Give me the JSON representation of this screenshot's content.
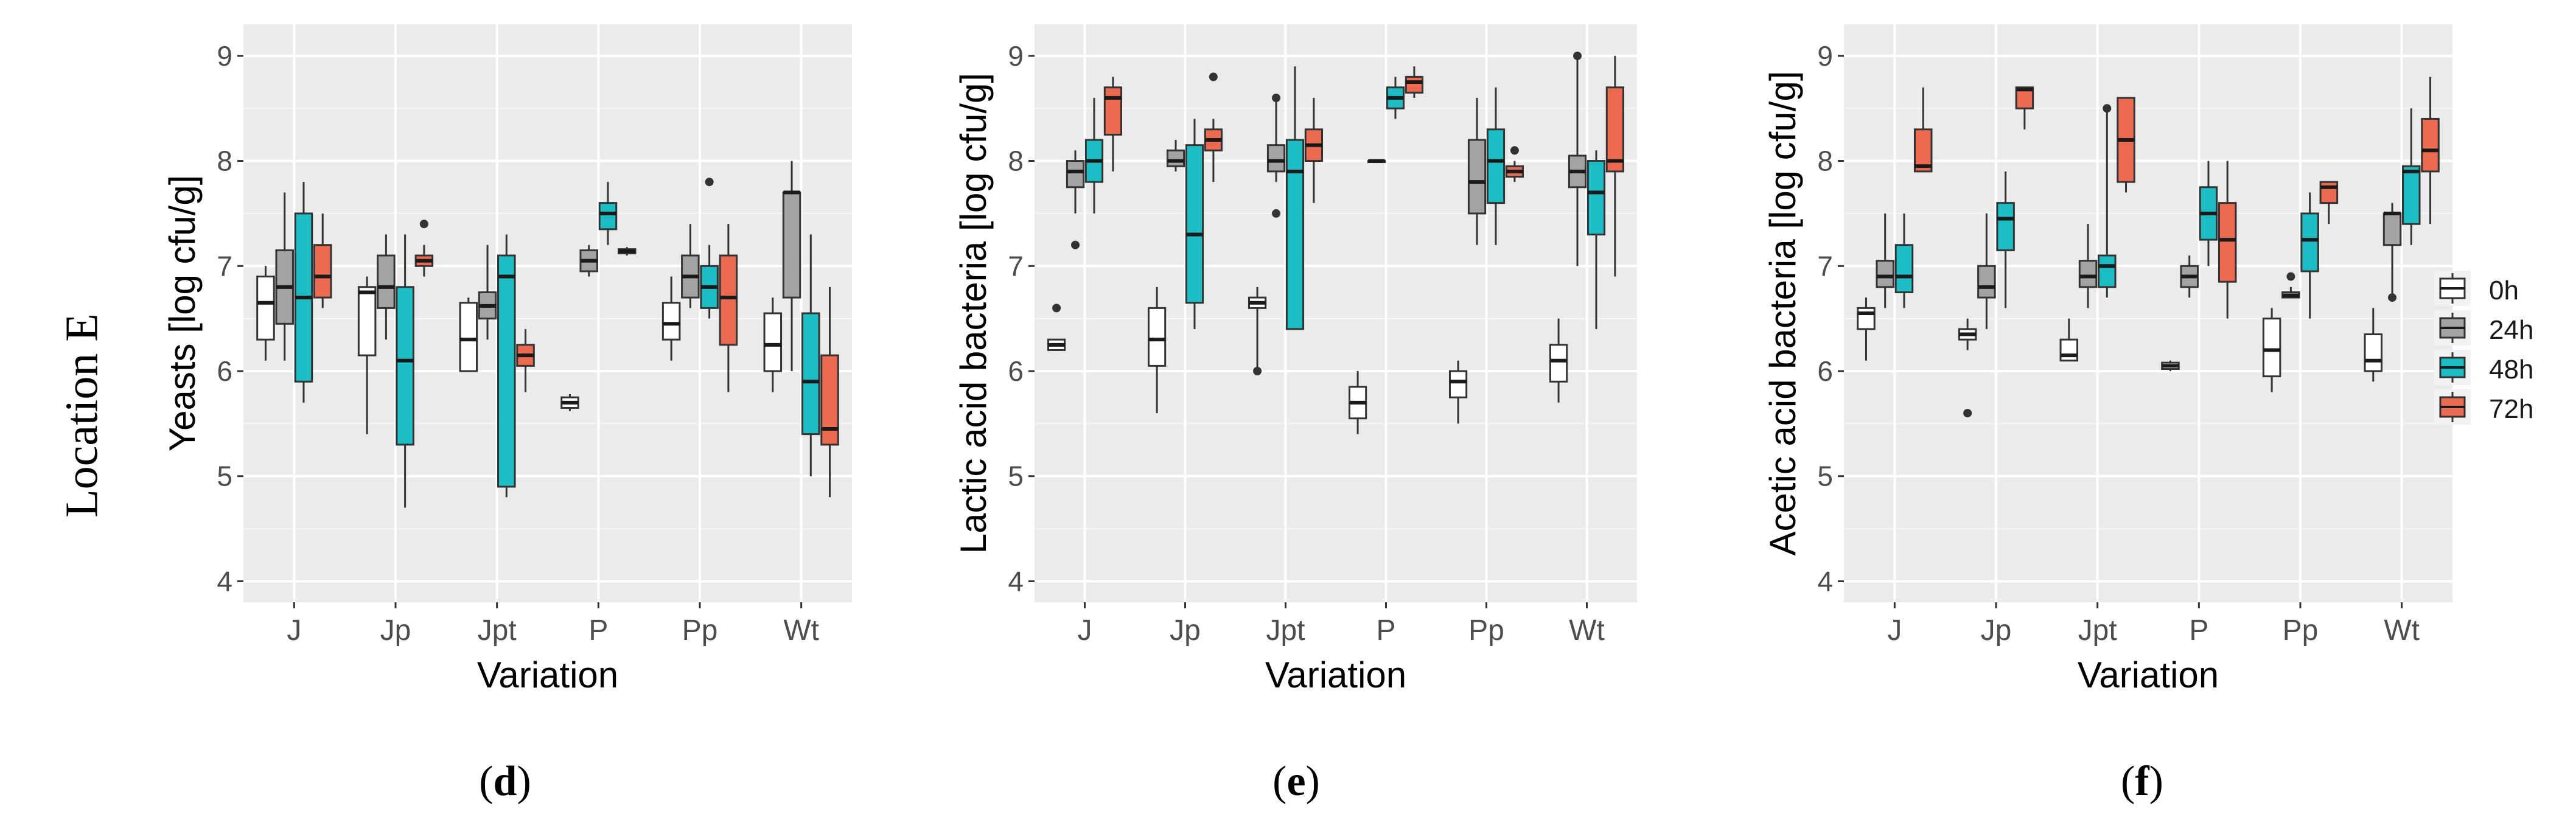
{
  "row_label": "Location E",
  "legend": {
    "items": [
      {
        "label": "0h",
        "color": "#ffffff"
      },
      {
        "label": "24h",
        "color": "#a3a3a3"
      },
      {
        "label": "48h",
        "color": "#1cbdc5"
      },
      {
        "label": "72h",
        "color": "#ec6a4f"
      }
    ]
  },
  "chart_data": [
    {
      "type": "boxplot",
      "panel_letter": "d",
      "xlabel": "Variation",
      "ylabel": "Yeasts [log cfu/g]",
      "ylim": [
        3.8,
        9.3
      ],
      "yticks": [
        "4",
        "5",
        "6",
        "7",
        "8",
        "9"
      ],
      "categories": [
        "J",
        "Jp",
        "Jpt",
        "P",
        "Pp",
        "Wt"
      ],
      "series": [
        {
          "name": "0h",
          "boxes": [
            {
              "min": 6.1,
              "q1": 6.3,
              "median": 6.65,
              "q3": 6.9,
              "max": 7.0,
              "outliers": []
            },
            {
              "min": 5.4,
              "q1": 6.15,
              "median": 6.75,
              "q3": 6.8,
              "max": 6.9,
              "outliers": []
            },
            {
              "min": 6.0,
              "q1": 6.0,
              "median": 6.3,
              "q3": 6.65,
              "max": 6.7,
              "outliers": []
            },
            {
              "min": 5.62,
              "q1": 5.65,
              "median": 5.7,
              "q3": 5.75,
              "max": 5.78,
              "outliers": []
            },
            {
              "min": 6.1,
              "q1": 6.3,
              "median": 6.45,
              "q3": 6.65,
              "max": 6.9,
              "outliers": []
            },
            {
              "min": 5.8,
              "q1": 6.0,
              "median": 6.25,
              "q3": 6.55,
              "max": 6.7,
              "outliers": []
            }
          ]
        },
        {
          "name": "24h",
          "boxes": [
            {
              "min": 6.1,
              "q1": 6.45,
              "median": 6.8,
              "q3": 7.15,
              "max": 7.7,
              "outliers": []
            },
            {
              "min": 6.3,
              "q1": 6.6,
              "median": 6.8,
              "q3": 7.1,
              "max": 7.3,
              "outliers": []
            },
            {
              "min": 6.3,
              "q1": 6.5,
              "median": 6.62,
              "q3": 6.75,
              "max": 7.2,
              "outliers": []
            },
            {
              "min": 6.9,
              "q1": 6.95,
              "median": 7.05,
              "q3": 7.15,
              "max": 7.2,
              "outliers": []
            },
            {
              "min": 6.6,
              "q1": 6.7,
              "median": 6.9,
              "q3": 7.1,
              "max": 7.4,
              "outliers": []
            },
            {
              "min": 6.0,
              "q1": 6.7,
              "median": 7.7,
              "q3": 7.7,
              "max": 8.0,
              "outliers": []
            }
          ]
        },
        {
          "name": "48h",
          "boxes": [
            {
              "min": 5.7,
              "q1": 5.9,
              "median": 6.7,
              "q3": 7.5,
              "max": 7.8,
              "outliers": []
            },
            {
              "min": 4.7,
              "q1": 5.3,
              "median": 6.1,
              "q3": 6.8,
              "max": 7.3,
              "outliers": []
            },
            {
              "min": 4.8,
              "q1": 4.9,
              "median": 6.9,
              "q3": 7.1,
              "max": 7.3,
              "outliers": []
            },
            {
              "min": 7.2,
              "q1": 7.35,
              "median": 7.5,
              "q3": 7.6,
              "max": 7.8,
              "outliers": []
            },
            {
              "min": 6.5,
              "q1": 6.6,
              "median": 6.8,
              "q3": 7.0,
              "max": 7.2,
              "outliers": [
                7.8
              ]
            },
            {
              "min": 5.0,
              "q1": 5.4,
              "median": 5.9,
              "q3": 6.55,
              "max": 7.3,
              "outliers": []
            }
          ]
        },
        {
          "name": "72h",
          "boxes": [
            {
              "min": 6.6,
              "q1": 6.7,
              "median": 6.9,
              "q3": 7.2,
              "max": 7.5,
              "outliers": []
            },
            {
              "min": 6.9,
              "q1": 7.0,
              "median": 7.05,
              "q3": 7.1,
              "max": 7.2,
              "outliers": [
                7.4
              ]
            },
            {
              "min": 5.8,
              "q1": 6.05,
              "median": 6.15,
              "q3": 6.25,
              "max": 6.4,
              "outliers": []
            },
            {
              "min": 7.1,
              "q1": 7.12,
              "median": 7.14,
              "q3": 7.16,
              "max": 7.18,
              "outliers": []
            },
            {
              "min": 5.8,
              "q1": 6.25,
              "median": 6.7,
              "q3": 7.1,
              "max": 7.4,
              "outliers": []
            },
            {
              "min": 4.8,
              "q1": 5.3,
              "median": 5.45,
              "q3": 6.15,
              "max": 6.8,
              "outliers": []
            }
          ]
        }
      ]
    },
    {
      "type": "boxplot",
      "panel_letter": "e",
      "xlabel": "Variation",
      "ylabel": "Lactic acid bacteria [log cfu/g]",
      "ylim": [
        3.8,
        9.3
      ],
      "yticks": [
        "4",
        "5",
        "6",
        "7",
        "8",
        "9"
      ],
      "categories": [
        "J",
        "Jp",
        "Jpt",
        "P",
        "Pp",
        "Wt"
      ],
      "series": [
        {
          "name": "0h",
          "boxes": [
            {
              "min": 6.2,
              "q1": 6.2,
              "median": 6.25,
              "q3": 6.3,
              "max": 6.3,
              "outliers": [
                6.6
              ]
            },
            {
              "min": 5.6,
              "q1": 6.05,
              "median": 6.3,
              "q3": 6.6,
              "max": 6.8,
              "outliers": []
            },
            {
              "min": 6.0,
              "q1": 6.6,
              "median": 6.65,
              "q3": 6.7,
              "max": 6.8,
              "outliers": [
                6.0
              ]
            },
            {
              "min": 5.4,
              "q1": 5.55,
              "median": 5.7,
              "q3": 5.85,
              "max": 6.0,
              "outliers": []
            },
            {
              "min": 5.5,
              "q1": 5.75,
              "median": 5.9,
              "q3": 6.0,
              "max": 6.1,
              "outliers": []
            },
            {
              "min": 5.7,
              "q1": 5.9,
              "median": 6.1,
              "q3": 6.25,
              "max": 6.5,
              "outliers": []
            }
          ]
        },
        {
          "name": "24h",
          "boxes": [
            {
              "min": 7.5,
              "q1": 7.75,
              "median": 7.9,
              "q3": 8.0,
              "max": 8.1,
              "outliers": [
                7.2
              ]
            },
            {
              "min": 7.9,
              "q1": 7.95,
              "median": 8.0,
              "q3": 8.1,
              "max": 8.2,
              "outliers": []
            },
            {
              "min": 7.8,
              "q1": 7.9,
              "median": 8.0,
              "q3": 8.15,
              "max": 8.6,
              "outliers": [
                7.5,
                8.6
              ]
            },
            {
              "min": 8.0,
              "q1": 8.0,
              "median": 8.0,
              "q3": 8.0,
              "max": 8.0,
              "outliers": []
            },
            {
              "min": 7.2,
              "q1": 7.5,
              "median": 7.8,
              "q3": 8.2,
              "max": 8.6,
              "outliers": []
            },
            {
              "min": 7.0,
              "q1": 7.75,
              "median": 7.9,
              "q3": 8.05,
              "max": 9.0,
              "outliers": [
                9.0
              ]
            }
          ]
        },
        {
          "name": "48h",
          "boxes": [
            {
              "min": 7.5,
              "q1": 7.8,
              "median": 8.0,
              "q3": 8.2,
              "max": 8.6,
              "outliers": []
            },
            {
              "min": 6.4,
              "q1": 6.65,
              "median": 7.3,
              "q3": 8.15,
              "max": 8.4,
              "outliers": []
            },
            {
              "min": 6.4,
              "q1": 6.4,
              "median": 7.9,
              "q3": 8.2,
              "max": 8.9,
              "outliers": []
            },
            {
              "min": 8.4,
              "q1": 8.5,
              "median": 8.6,
              "q3": 8.7,
              "max": 8.8,
              "outliers": []
            },
            {
              "min": 7.2,
              "q1": 7.6,
              "median": 8.0,
              "q3": 8.3,
              "max": 8.7,
              "outliers": []
            },
            {
              "min": 6.4,
              "q1": 7.3,
              "median": 7.7,
              "q3": 8.0,
              "max": 8.1,
              "outliers": []
            }
          ]
        },
        {
          "name": "72h",
          "boxes": [
            {
              "min": 7.9,
              "q1": 8.25,
              "median": 8.6,
              "q3": 8.7,
              "max": 8.8,
              "outliers": []
            },
            {
              "min": 7.8,
              "q1": 8.1,
              "median": 8.2,
              "q3": 8.3,
              "max": 8.4,
              "outliers": [
                8.8
              ]
            },
            {
              "min": 7.6,
              "q1": 8.0,
              "median": 8.15,
              "q3": 8.3,
              "max": 8.6,
              "outliers": []
            },
            {
              "min": 8.6,
              "q1": 8.65,
              "median": 8.75,
              "q3": 8.8,
              "max": 8.9,
              "outliers": []
            },
            {
              "min": 7.8,
              "q1": 7.85,
              "median": 7.9,
              "q3": 7.95,
              "max": 8.0,
              "outliers": [
                8.1
              ]
            },
            {
              "min": 6.9,
              "q1": 7.9,
              "median": 8.0,
              "q3": 8.7,
              "max": 9.0,
              "outliers": []
            }
          ]
        }
      ]
    },
    {
      "type": "boxplot",
      "panel_letter": "f",
      "xlabel": "Variation",
      "ylabel": "Acetic acid bacteria [log cfu/g]",
      "ylim": [
        3.8,
        9.3
      ],
      "yticks": [
        "4",
        "5",
        "6",
        "7",
        "8",
        "9"
      ],
      "categories": [
        "J",
        "Jp",
        "Jpt",
        "P",
        "Pp",
        "Wt"
      ],
      "series": [
        {
          "name": "0h",
          "boxes": [
            {
              "min": 6.1,
              "q1": 6.4,
              "median": 6.55,
              "q3": 6.6,
              "max": 6.7,
              "outliers": []
            },
            {
              "min": 6.2,
              "q1": 6.3,
              "median": 6.35,
              "q3": 6.4,
              "max": 6.5,
              "outliers": [
                5.6
              ]
            },
            {
              "min": 6.1,
              "q1": 6.1,
              "median": 6.15,
              "q3": 6.3,
              "max": 6.5,
              "outliers": []
            },
            {
              "min": 6.0,
              "q1": 6.02,
              "median": 6.05,
              "q3": 6.08,
              "max": 6.1,
              "outliers": []
            },
            {
              "min": 5.8,
              "q1": 5.95,
              "median": 6.2,
              "q3": 6.5,
              "max": 6.6,
              "outliers": []
            },
            {
              "min": 5.9,
              "q1": 6.0,
              "median": 6.1,
              "q3": 6.35,
              "max": 6.6,
              "outliers": []
            }
          ]
        },
        {
          "name": "24h",
          "boxes": [
            {
              "min": 6.6,
              "q1": 6.8,
              "median": 6.9,
              "q3": 7.05,
              "max": 7.5,
              "outliers": []
            },
            {
              "min": 6.4,
              "q1": 6.7,
              "median": 6.8,
              "q3": 7.0,
              "max": 7.5,
              "outliers": []
            },
            {
              "min": 6.6,
              "q1": 6.8,
              "median": 6.9,
              "q3": 7.05,
              "max": 7.4,
              "outliers": []
            },
            {
              "min": 6.7,
              "q1": 6.8,
              "median": 6.9,
              "q3": 7.0,
              "max": 7.1,
              "outliers": []
            },
            {
              "min": 6.7,
              "q1": 6.7,
              "median": 6.72,
              "q3": 6.75,
              "max": 6.8,
              "outliers": [
                6.9
              ]
            },
            {
              "min": 6.7,
              "q1": 7.2,
              "median": 7.5,
              "q3": 7.5,
              "max": 7.6,
              "outliers": [
                6.7
              ]
            }
          ]
        },
        {
          "name": "48h",
          "boxes": [
            {
              "min": 6.6,
              "q1": 6.75,
              "median": 6.9,
              "q3": 7.2,
              "max": 7.5,
              "outliers": []
            },
            {
              "min": 6.6,
              "q1": 7.15,
              "median": 7.45,
              "q3": 7.6,
              "max": 7.9,
              "outliers": []
            },
            {
              "min": 6.7,
              "q1": 6.8,
              "median": 7.0,
              "q3": 7.1,
              "max": 8.5,
              "outliers": [
                8.5
              ]
            },
            {
              "min": 7.0,
              "q1": 7.25,
              "median": 7.5,
              "q3": 7.75,
              "max": 8.0,
              "outliers": []
            },
            {
              "min": 6.5,
              "q1": 6.95,
              "median": 7.25,
              "q3": 7.5,
              "max": 7.7,
              "outliers": []
            },
            {
              "min": 7.2,
              "q1": 7.4,
              "median": 7.9,
              "q3": 7.95,
              "max": 8.5,
              "outliers": []
            }
          ]
        },
        {
          "name": "72h",
          "boxes": [
            {
              "min": 7.9,
              "q1": 7.9,
              "median": 7.95,
              "q3": 8.3,
              "max": 8.7,
              "outliers": []
            },
            {
              "min": 8.3,
              "q1": 8.5,
              "median": 8.68,
              "q3": 8.7,
              "max": 8.7,
              "outliers": []
            },
            {
              "min": 7.7,
              "q1": 7.8,
              "median": 8.2,
              "q3": 8.6,
              "max": 8.6,
              "outliers": []
            },
            {
              "min": 6.5,
              "q1": 6.85,
              "median": 7.25,
              "q3": 7.6,
              "max": 8.0,
              "outliers": []
            },
            {
              "min": 7.4,
              "q1": 7.6,
              "median": 7.75,
              "q3": 7.8,
              "max": 7.8,
              "outliers": []
            },
            {
              "min": 7.4,
              "q1": 7.9,
              "median": 8.1,
              "q3": 8.4,
              "max": 8.8,
              "outliers": []
            }
          ]
        }
      ]
    }
  ]
}
